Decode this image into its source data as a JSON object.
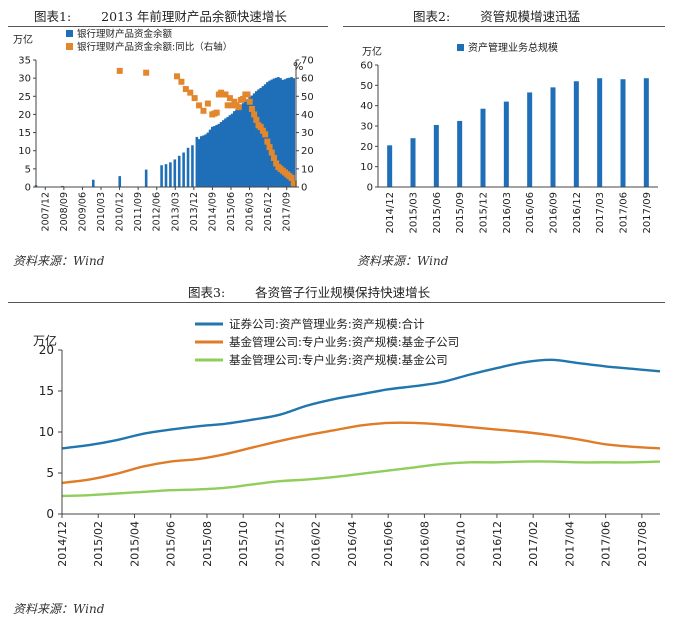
{
  "chart1": {
    "title_num": "图表1:",
    "title": "2013 年前理财产品余额快速增长",
    "legend": [
      "银行理财产品资金余额",
      "银行理财产品资金余额:同比（右轴）"
    ],
    "left_unit": "万亿",
    "right_unit": "%",
    "source": "资料来源：Wind"
  },
  "chart2": {
    "title_num": "图表2:",
    "title": "资管规模增速迅猛",
    "legend": [
      "资产管理业务总规模"
    ],
    "unit": "万亿",
    "source": "资料来源：Wind"
  },
  "chart3": {
    "title_num": "图表3:",
    "title": "各资管子行业规模保持快速增长",
    "legend": [
      "证券公司:资产管理业务:资产规模:合计",
      "基金管理公司:专户业务:资产规模:基金子公司",
      "基金管理公司:专户业务:资产规模:基金公司"
    ],
    "unit": "万亿",
    "source": "资料来源：Wind"
  },
  "chart_data": [
    {
      "type": "bar",
      "title": "2013 年前理财产品余额快速增长",
      "x_ticks": [
        "2007/12",
        "2008/09",
        "2009/06",
        "2010/03",
        "2010/12",
        "2011/09",
        "2012/06",
        "2013/03",
        "2013/12",
        "2014/09",
        "2015/06",
        "2016/03",
        "2016/12",
        "2017/09"
      ],
      "y_left": {
        "label": "万亿",
        "ticks": [
          0,
          5,
          10,
          15,
          20,
          25,
          30,
          35
        ],
        "lim": [
          0,
          35
        ]
      },
      "y_right": {
        "label": "%",
        "ticks": [
          0,
          10,
          20,
          30,
          40,
          50,
          60,
          70
        ],
        "lim": [
          0,
          70
        ]
      },
      "grid": false,
      "legend_position": "top-left",
      "colors": {
        "bars": "#1f6fb8",
        "yoy": "#e3872c"
      },
      "series": [
        {
          "name": "银行理财产品资金余额",
          "type": "bar",
          "axis": "left",
          "points": [
            [
              0,
              0.5
            ],
            [
              6,
              0.3
            ],
            [
              13,
              2
            ],
            [
              19,
              3
            ],
            [
              25,
              4.8
            ],
            [
              28.5,
              6.0
            ],
            [
              29.5,
              6.3
            ],
            [
              30.5,
              6.8
            ],
            [
              31.5,
              7.6
            ],
            [
              32.5,
              8.6
            ],
            [
              33.5,
              9.5
            ],
            [
              34.5,
              10.8
            ],
            [
              35.5,
              11.5
            ],
            [
              36.5,
              13.8
            ],
            [
              37,
              13.2
            ],
            [
              37.5,
              14.0
            ],
            [
              38,
              14.2
            ],
            [
              38.5,
              14.5
            ],
            [
              39,
              15.0
            ],
            [
              39.5,
              15.8
            ],
            [
              40,
              16.6
            ],
            [
              40.5,
              16.8
            ],
            [
              41,
              17.1
            ],
            [
              41.5,
              17.4
            ],
            [
              42,
              17.9
            ],
            [
              42.5,
              18.4
            ],
            [
              43,
              18.9
            ],
            [
              43.5,
              19.3
            ],
            [
              44,
              19.8
            ],
            [
              44.5,
              20.2
            ],
            [
              45,
              20.9
            ],
            [
              45.5,
              21.4
            ],
            [
              46,
              21.9
            ],
            [
              46.5,
              22.5
            ],
            [
              47,
              23.1
            ],
            [
              47.5,
              23.6
            ],
            [
              48,
              24.2
            ],
            [
              48.5,
              24.8
            ],
            [
              49,
              25.2
            ],
            [
              49.5,
              25.8
            ],
            [
              50,
              26.4
            ],
            [
              50.5,
              26.9
            ],
            [
              51,
              27.3
            ],
            [
              51.5,
              27.8
            ],
            [
              52,
              28.3
            ],
            [
              52.5,
              28.9
            ],
            [
              53,
              29.3
            ],
            [
              53.5,
              29.6
            ],
            [
              54,
              29.9
            ],
            [
              54.5,
              30.1
            ],
            [
              55,
              30.3
            ],
            [
              55.5,
              30.0
            ],
            [
              56,
              29.5
            ],
            [
              56.5,
              29.7
            ],
            [
              57,
              30.0
            ],
            [
              57.5,
              30.1
            ],
            [
              58,
              30.3
            ],
            [
              58.5,
              30.0
            ]
          ]
        },
        {
          "name": "银行理财产品资金余额:同比（右轴）",
          "type": "scatter",
          "axis": "right",
          "points": [
            [
              19,
              64
            ],
            [
              25,
              63
            ],
            [
              32,
              61
            ],
            [
              33,
              58
            ],
            [
              34,
              54
            ],
            [
              35,
              52
            ],
            [
              36,
              49
            ],
            [
              37,
              45
            ],
            [
              38,
              42
            ],
            [
              39,
              46
            ],
            [
              40,
              40
            ],
            [
              40.5,
              40.5
            ],
            [
              41,
              41
            ],
            [
              41.5,
              51
            ],
            [
              42,
              52
            ],
            [
              42.5,
              51
            ],
            [
              43,
              51
            ],
            [
              43.5,
              45
            ],
            [
              44,
              49
            ],
            [
              44.5,
              45
            ],
            [
              45,
              47
            ],
            [
              45.5,
              45
            ],
            [
              46,
              44
            ],
            [
              46.5,
              48
            ],
            [
              47,
              48.5
            ],
            [
              47.5,
              51
            ],
            [
              48,
              51
            ],
            [
              48.5,
              47
            ],
            [
              49,
              43
            ],
            [
              49.5,
              40
            ],
            [
              50,
              37
            ],
            [
              50.5,
              34
            ],
            [
              51,
              33
            ],
            [
              51.5,
              31
            ],
            [
              52,
              29
            ],
            [
              52.5,
              25
            ],
            [
              53,
              22
            ],
            [
              53.5,
              19
            ],
            [
              54,
              16
            ],
            [
              54.5,
              13
            ],
            [
              55,
              11
            ],
            [
              55.5,
              10
            ],
            [
              56,
              9
            ],
            [
              56.5,
              8
            ],
            [
              57,
              7
            ],
            [
              57.5,
              6
            ],
            [
              58,
              5
            ],
            [
              58.5,
              2
            ]
          ]
        }
      ]
    },
    {
      "type": "bar",
      "title": "资管规模增速迅猛",
      "categories": [
        "2014/12",
        "2015/03",
        "2015/06",
        "2015/09",
        "2015/12",
        "2016/03",
        "2016/06",
        "2016/09",
        "2016/12",
        "2017/03",
        "2017/06",
        "2017/09"
      ],
      "y": {
        "label": "万亿",
        "ticks": [
          0,
          10,
          20,
          30,
          40,
          50,
          60
        ],
        "lim": [
          0,
          60
        ]
      },
      "grid": false,
      "legend_position": "top-left",
      "colors": {
        "bars": "#1f6fb8"
      },
      "series": [
        {
          "name": "资产管理业务总规模",
          "values": [
            20.5,
            24,
            30.5,
            32.5,
            38.5,
            42,
            46.5,
            49,
            52,
            53.5,
            53,
            53.5
          ]
        }
      ]
    },
    {
      "type": "line",
      "title": "各资管子行业规模保持快速增长",
      "x_ticks": [
        "2014/12",
        "2015/02",
        "2015/04",
        "2015/06",
        "2015/08",
        "2015/10",
        "2015/12",
        "2016/02",
        "2016/04",
        "2016/06",
        "2016/08",
        "2016/10",
        "2016/12",
        "2017/02",
        "2017/04",
        "2017/06",
        "2017/08"
      ],
      "y": {
        "label": "万亿",
        "ticks": [
          0,
          5,
          10,
          15,
          20
        ],
        "lim": [
          0,
          20
        ]
      },
      "grid": false,
      "legend_position": "top-center",
      "colors": {
        "s1": "#2176ae",
        "s2": "#e07b27",
        "s3": "#8fce5a"
      },
      "series": [
        {
          "name": "证券公司:资产管理业务:资产规模:合计",
          "color": "#2176ae",
          "x": [
            0,
            1.5,
            3,
            4.5,
            6,
            7.5,
            9,
            10.5,
            12,
            13.5,
            15,
            16.5,
            18,
            19.5,
            21,
            22.5,
            24,
            25.5,
            27,
            28.5,
            30,
            31.5,
            33
          ],
          "values": [
            8,
            8.4,
            9,
            9.8,
            10.3,
            10.7,
            11.0,
            11.5,
            12.1,
            13.2,
            14.0,
            14.6,
            15.2,
            15.6,
            16.1,
            17.0,
            17.8,
            18.5,
            18.8,
            18.4,
            18.0,
            17.7,
            17.4
          ]
        },
        {
          "name": "基金管理公司:专户业务:资产规模:基金子公司",
          "color": "#e07b27",
          "x": [
            0,
            1.5,
            3,
            4.5,
            6,
            7.5,
            9,
            10.5,
            12,
            13.5,
            15,
            16.5,
            18,
            19.5,
            21,
            22.5,
            24,
            25.5,
            27,
            28.5,
            30,
            31.5,
            33
          ],
          "values": [
            3.8,
            4.2,
            4.9,
            5.8,
            6.4,
            6.7,
            7.3,
            8.1,
            8.9,
            9.6,
            10.2,
            10.8,
            11.1,
            11.1,
            10.9,
            10.6,
            10.3,
            10.0,
            9.6,
            9.1,
            8.5,
            8.2,
            8.0
          ]
        },
        {
          "name": "基金管理公司:专户业务:资产规模:基金公司",
          "color": "#8fce5a",
          "x": [
            0,
            1.5,
            3,
            4.5,
            6,
            7.5,
            9,
            10.5,
            12,
            13.5,
            15,
            16.5,
            18,
            19.5,
            21,
            22.5,
            24,
            25.5,
            27,
            28.5,
            30,
            31.5,
            33
          ],
          "values": [
            2.2,
            2.3,
            2.5,
            2.7,
            2.9,
            3.0,
            3.2,
            3.6,
            4.0,
            4.2,
            4.5,
            4.9,
            5.3,
            5.7,
            6.1,
            6.3,
            6.3,
            6.4,
            6.4,
            6.3,
            6.3,
            6.3,
            6.4
          ]
        }
      ]
    }
  ]
}
